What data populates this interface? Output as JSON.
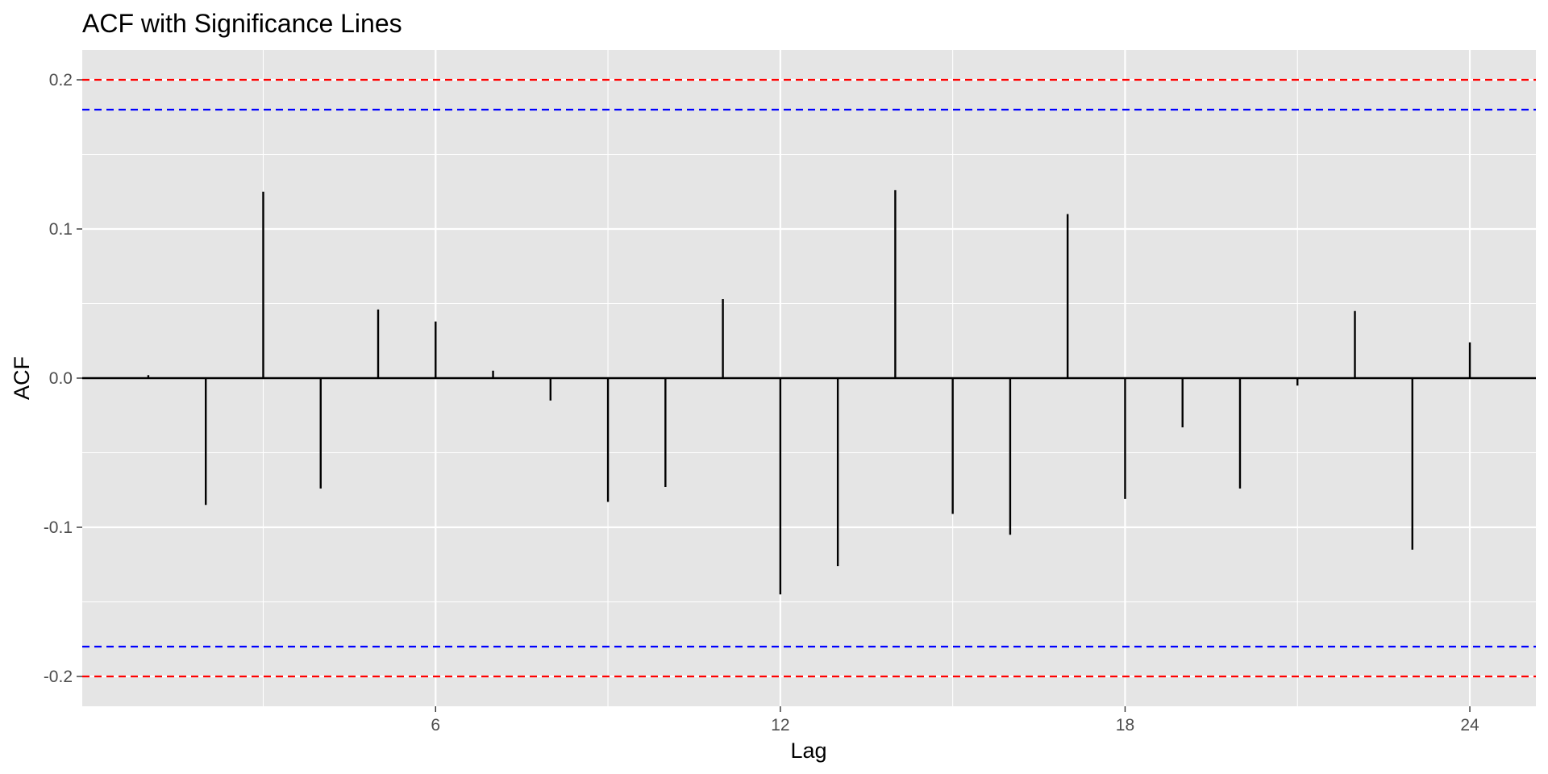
{
  "chart_data": {
    "type": "bar",
    "title": "ACF with Significance Lines",
    "xlabel": "Lag",
    "ylabel": "ACF",
    "x": [
      1,
      2,
      3,
      4,
      5,
      6,
      7,
      8,
      9,
      10,
      11,
      12,
      13,
      14,
      15,
      16,
      17,
      18,
      19,
      20,
      21,
      22,
      23,
      24
    ],
    "values": [
      0.002,
      -0.085,
      0.125,
      -0.074,
      0.046,
      0.038,
      0.005,
      -0.015,
      -0.083,
      -0.073,
      0.053,
      -0.145,
      -0.126,
      0.126,
      -0.091,
      -0.105,
      0.11,
      -0.081,
      -0.033,
      -0.074,
      -0.005,
      0.045,
      -0.115,
      0.024
    ],
    "xlim": [
      -0.15,
      25.15
    ],
    "ylim": [
      -0.22,
      0.22
    ],
    "x_ticks": [
      6,
      12,
      18,
      24
    ],
    "x_tick_labels": [
      "6",
      "12",
      "18",
      "24"
    ],
    "y_ticks": [
      -0.2,
      -0.1,
      0.0,
      0.1,
      0.2
    ],
    "y_tick_labels": [
      "-0.2",
      "-0.1",
      "0.0",
      "0.1",
      "0.2"
    ],
    "significance_lines": [
      {
        "value": 0.2,
        "color": "#ff0000",
        "style": "dashed"
      },
      {
        "value": -0.2,
        "color": "#ff0000",
        "style": "dashed"
      },
      {
        "value": 0.18,
        "color": "#0000ff",
        "style": "dashed"
      },
      {
        "value": -0.18,
        "color": "#0000ff",
        "style": "dashed"
      }
    ],
    "zero_line": 0,
    "grid": true,
    "legend": false,
    "panel_background": "#e5e5e5",
    "grid_color": "#ffffff",
    "bar_color": "#000000"
  }
}
